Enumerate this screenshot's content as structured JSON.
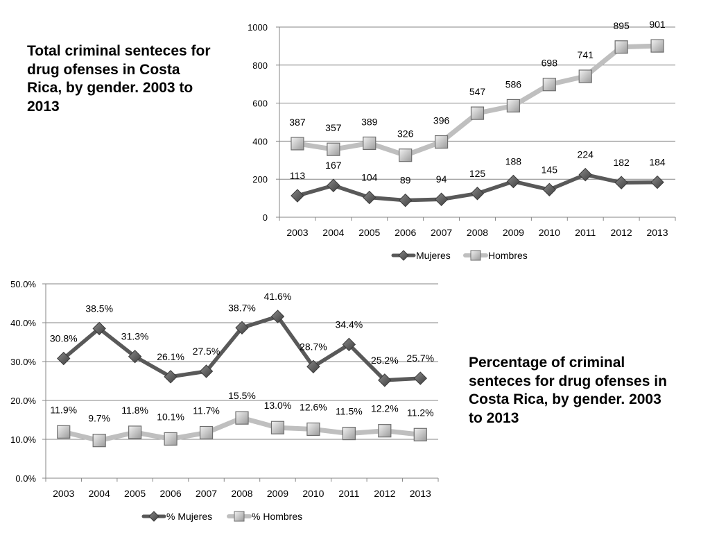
{
  "captions": {
    "top": "Total criminal senteces for drug ofenses in Costa Rica, by gender. 2003 to 2013",
    "bottom": "Percentage of criminal senteces for drug ofenses in Costa Rica, by gender. 2003 to 2013"
  },
  "colors": {
    "dark_series": "#595959",
    "light_series": "#bfbfbf",
    "grid": "#868686",
    "marker_dark": "#505050",
    "marker_light": "#d2d2d2"
  },
  "chart_data": [
    {
      "type": "line",
      "title": "Total criminal senteces for drug ofenses in Costa Rica, by gender. 2003 to 2013",
      "categories": [
        "2003",
        "2004",
        "2005",
        "2006",
        "2007",
        "2008",
        "2009",
        "2010",
        "2011",
        "2012",
        "2013"
      ],
      "ylim": [
        0,
        1000
      ],
      "yticks": [
        0,
        200,
        400,
        600,
        800,
        1000
      ],
      "ytick_labels": [
        "0",
        "200",
        "400",
        "600",
        "800",
        "1000"
      ],
      "legend_position": "bottom",
      "series": [
        {
          "name": "Mujeres",
          "marker": "diamond",
          "values": [
            113,
            167,
            104,
            89,
            94,
            125,
            188,
            145,
            224,
            182,
            184
          ],
          "labels": [
            "113",
            "167",
            "104",
            "89",
            "94",
            "125",
            "188",
            "145",
            "224",
            "182",
            "184"
          ]
        },
        {
          "name": "Hombres",
          "marker": "square",
          "values": [
            387,
            357,
            389,
            326,
            396,
            547,
            586,
            698,
            741,
            895,
            901
          ],
          "labels": [
            "387",
            "357",
            "389",
            "326",
            "396",
            "547",
            "586",
            "698",
            "741",
            "895",
            "901"
          ]
        }
      ]
    },
    {
      "type": "line",
      "title": "Percentage of criminal senteces for drug ofenses in Costa Rica, by gender. 2003 to 2013",
      "categories": [
        "2003",
        "2004",
        "2005",
        "2006",
        "2007",
        "2008",
        "2009",
        "2010",
        "2011",
        "2012",
        "2013"
      ],
      "ylim": [
        0,
        50
      ],
      "yticks": [
        0,
        10,
        20,
        30,
        40,
        50
      ],
      "ytick_labels": [
        "0.0%",
        "10.0%",
        "20.0%",
        "30.0%",
        "40.0%",
        "50.0%"
      ],
      "legend_position": "bottom",
      "series": [
        {
          "name": "% Mujeres",
          "marker": "diamond",
          "values": [
            30.8,
            38.5,
            31.3,
            26.1,
            27.5,
            38.7,
            41.6,
            28.7,
            34.4,
            25.2,
            25.7
          ],
          "labels": [
            "30.8%",
            "38.5%",
            "31.3%",
            "26.1%",
            "27.5%",
            "38.7%",
            "41.6%",
            "28.7%",
            "34.4%",
            "25.2%",
            "25.7%"
          ]
        },
        {
          "name": "% Hombres",
          "marker": "square",
          "values": [
            11.9,
            9.7,
            11.8,
            10.1,
            11.7,
            15.5,
            13.0,
            12.6,
            11.5,
            12.2,
            11.2
          ],
          "labels": [
            "11.9%",
            "9.7%",
            "11.8%",
            "10.1%",
            "11.7%",
            "15.5%",
            "13.0%",
            "12.6%",
            "11.5%",
            "12.2%",
            "11.2%"
          ]
        }
      ]
    }
  ]
}
